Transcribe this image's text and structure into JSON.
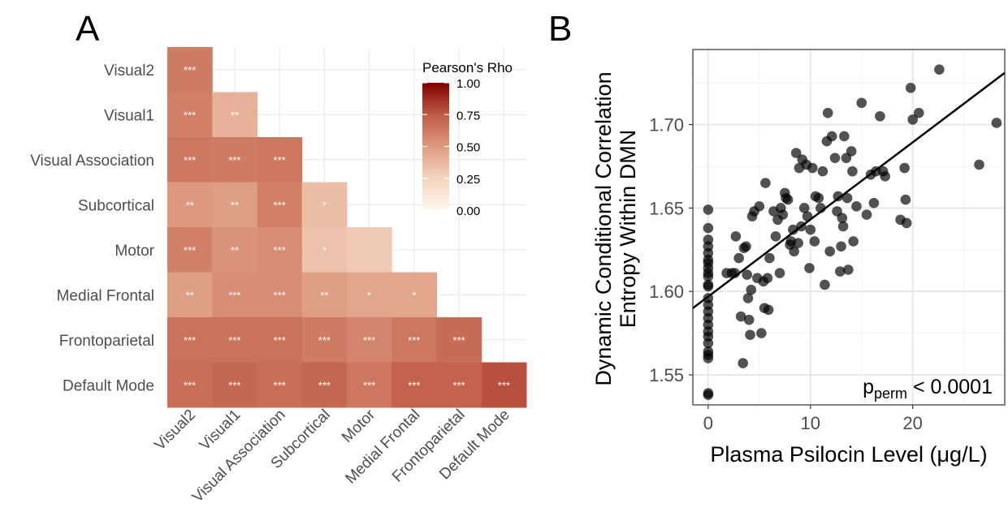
{
  "chart_data": [
    {
      "panel": "A",
      "type": "heatmap",
      "rows": [
        "Visual2",
        "Visual1",
        "Visual Association",
        "Subcortical",
        "Motor",
        "Medial Frontal",
        "Frontoparietal",
        "Default Mode"
      ],
      "columns": [
        "Visual2",
        "Visual1",
        "Visual Association",
        "Subcortical",
        "Motor",
        "Medial Frontal",
        "Frontoparietal",
        "Default Mode"
      ],
      "values": [
        [
          0.62
        ],
        [
          0.6,
          0.4
        ],
        [
          0.63,
          0.62,
          0.64
        ],
        [
          0.5,
          0.48,
          0.6,
          0.35
        ],
        [
          0.6,
          0.52,
          0.55,
          0.33,
          0.3
        ],
        [
          0.48,
          0.55,
          0.55,
          0.48,
          0.45,
          0.45
        ],
        [
          0.66,
          0.66,
          0.66,
          0.62,
          0.58,
          0.64,
          0.68
        ],
        [
          0.67,
          0.7,
          0.67,
          0.7,
          0.64,
          0.72,
          0.72,
          0.78
        ]
      ],
      "significance": [
        [
          "***"
        ],
        [
          "***",
          "**"
        ],
        [
          "***",
          "***",
          "***"
        ],
        [
          "**",
          "**",
          "***",
          "*"
        ],
        [
          "***",
          "**",
          "***",
          "*",
          ""
        ],
        [
          "**",
          "***",
          "***",
          "**",
          "*",
          "*"
        ],
        [
          "***",
          "***",
          "***",
          "***",
          "***",
          "***",
          "***"
        ],
        [
          "***",
          "***",
          "***",
          "***",
          "***",
          "***",
          "***",
          "***"
        ]
      ],
      "legend": {
        "title": "Pearson's Rho",
        "ticks": [
          "1.00",
          "0.75",
          "0.50",
          "0.25",
          "0.00"
        ],
        "range": [
          0,
          1
        ],
        "low_color": "#fff7ec",
        "high_color": "#7f0000"
      },
      "grid": true
    },
    {
      "panel": "B",
      "type": "scatter",
      "xlabel": "Plasma Psilocin Level (μg/L)",
      "ylabel_lines": [
        "Dynamic Conditional Correlation",
        "Entropy Within DMN"
      ],
      "xlim": [
        -1.5,
        29
      ],
      "ylim": [
        1.532,
        1.745
      ],
      "xticks": [
        "0",
        "10",
        "20"
      ],
      "xtick_values": [
        0,
        10,
        20
      ],
      "yticks": [
        "1.55",
        "1.60",
        "1.65",
        "1.70"
      ],
      "ytick_values": [
        1.55,
        1.6,
        1.65,
        1.7
      ],
      "annotation": {
        "p": "p",
        "subscript": "perm",
        "rest": " < 0.0001"
      },
      "fit_line": {
        "x": [
          -1.5,
          29
        ],
        "y": [
          1.59,
          1.731
        ]
      },
      "points": [
        [
          0,
          1.649
        ],
        [
          0,
          1.638
        ],
        [
          0,
          1.631
        ],
        [
          0,
          1.627
        ],
        [
          0,
          1.623
        ],
        [
          0,
          1.619
        ],
        [
          0,
          1.617
        ],
        [
          0,
          1.614
        ],
        [
          0,
          1.611
        ],
        [
          0,
          1.609
        ],
        [
          0,
          1.604
        ],
        [
          0,
          1.603
        ],
        [
          0,
          1.596
        ],
        [
          0,
          1.592
        ],
        [
          0,
          1.588
        ],
        [
          0,
          1.584
        ],
        [
          0,
          1.58
        ],
        [
          0,
          1.576
        ],
        [
          0,
          1.573
        ],
        [
          0,
          1.569
        ],
        [
          0,
          1.564
        ],
        [
          0,
          1.562
        ],
        [
          0,
          1.56
        ],
        [
          0,
          1.538
        ],
        [
          0,
          1.539
        ],
        [
          1.8,
          1.611
        ],
        [
          2.3,
          1.611
        ],
        [
          2.6,
          1.611
        ],
        [
          2.7,
          1.633
        ],
        [
          3.0,
          1.62
        ],
        [
          3.2,
          1.585
        ],
        [
          3.4,
          1.557
        ],
        [
          3.5,
          1.626
        ],
        [
          3.7,
          1.627
        ],
        [
          3.8,
          1.61
        ],
        [
          3.9,
          1.596
        ],
        [
          4.0,
          1.583
        ],
        [
          4.1,
          1.574
        ],
        [
          4.2,
          1.601
        ],
        [
          4.3,
          1.645
        ],
        [
          4.5,
          1.648
        ],
        [
          4.8,
          1.608
        ],
        [
          5.0,
          1.651
        ],
        [
          5.2,
          1.575
        ],
        [
          5.4,
          1.606
        ],
        [
          5.5,
          1.59
        ],
        [
          5.6,
          1.665
        ],
        [
          5.8,
          1.608
        ],
        [
          5.9,
          1.589
        ],
        [
          6.0,
          1.62
        ],
        [
          6.4,
          1.648
        ],
        [
          6.6,
          1.633
        ],
        [
          6.8,
          1.643
        ],
        [
          7.0,
          1.611
        ],
        [
          7.1,
          1.65
        ],
        [
          7.3,
          1.646
        ],
        [
          7.5,
          1.659
        ],
        [
          7.6,
          1.656
        ],
        [
          7.8,
          1.655
        ],
        [
          8.0,
          1.628
        ],
        [
          8.1,
          1.63
        ],
        [
          8.3,
          1.637
        ],
        [
          8.4,
          1.624
        ],
        [
          8.6,
          1.683
        ],
        [
          8.8,
          1.629
        ],
        [
          8.9,
          1.674
        ],
        [
          9.1,
          1.639
        ],
        [
          9.2,
          1.679
        ],
        [
          9.4,
          1.65
        ],
        [
          9.6,
          1.676
        ],
        [
          9.7,
          1.645
        ],
        [
          9.9,
          1.614
        ],
        [
          10.0,
          1.637
        ],
        [
          10.2,
          1.674
        ],
        [
          10.4,
          1.63
        ],
        [
          10.5,
          1.657
        ],
        [
          10.8,
          1.656
        ],
        [
          11.0,
          1.65
        ],
        [
          11.2,
          1.672
        ],
        [
          11.4,
          1.604
        ],
        [
          11.6,
          1.69
        ],
        [
          11.7,
          1.707
        ],
        [
          11.9,
          1.624
        ],
        [
          12.1,
          1.693
        ],
        [
          12.4,
          1.68
        ],
        [
          12.6,
          1.648
        ],
        [
          12.7,
          1.657
        ],
        [
          12.9,
          1.612
        ],
        [
          13.0,
          1.627
        ],
        [
          13.1,
          1.644
        ],
        [
          13.2,
          1.639
        ],
        [
          13.3,
          1.693
        ],
        [
          13.5,
          1.68
        ],
        [
          13.6,
          1.656
        ],
        [
          13.7,
          1.613
        ],
        [
          14.0,
          1.684
        ],
        [
          14.1,
          1.672
        ],
        [
          14.2,
          1.63
        ],
        [
          14.5,
          1.651
        ],
        [
          15.0,
          1.713
        ],
        [
          15.5,
          1.646
        ],
        [
          15.9,
          1.67
        ],
        [
          16.2,
          1.653
        ],
        [
          16.4,
          1.672
        ],
        [
          16.8,
          1.705
        ],
        [
          17.1,
          1.672
        ],
        [
          17.3,
          1.669
        ],
        [
          18.8,
          1.643
        ],
        [
          19.2,
          1.674
        ],
        [
          19.3,
          1.655
        ],
        [
          19.4,
          1.641
        ],
        [
          19.8,
          1.722
        ],
        [
          20.0,
          1.703
        ],
        [
          20.6,
          1.707
        ],
        [
          22.6,
          1.733
        ],
        [
          26.5,
          1.676
        ],
        [
          28.2,
          1.701
        ]
      ],
      "grid": true
    }
  ]
}
